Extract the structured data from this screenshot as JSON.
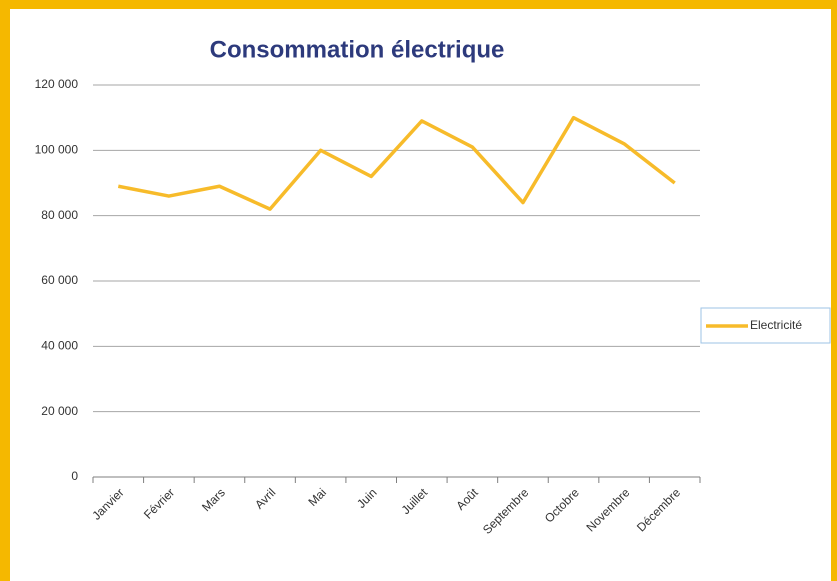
{
  "chart_data": {
    "type": "line",
    "title": "Consommation électrique",
    "categories": [
      "Janvier",
      "Février",
      "Mars",
      "Avril",
      "Mai",
      "Juin",
      "Juillet",
      "Août",
      "Septembre",
      "Octobre",
      "Novembre",
      "Décembre"
    ],
    "series": [
      {
        "name": "Electricité",
        "color": "#f7bb2a",
        "values": [
          89000,
          86000,
          89000,
          82000,
          100000,
          92000,
          109000,
          101000,
          84000,
          110000,
          102000,
          90000
        ]
      }
    ],
    "ylim": [
      0,
      120000
    ],
    "yticks": [
      0,
      {
        "value": 20000,
        "label": "20 000"
      },
      {
        "value": 40000,
        "label": "40 000"
      },
      {
        "value": 60000,
        "label": "60 000"
      },
      {
        "value": 80000,
        "label": "80 000"
      },
      {
        "value": 100000,
        "label": "100 000"
      },
      {
        "value": 120000,
        "label": "120 000"
      }
    ],
    "grid": true,
    "legend": "right"
  }
}
